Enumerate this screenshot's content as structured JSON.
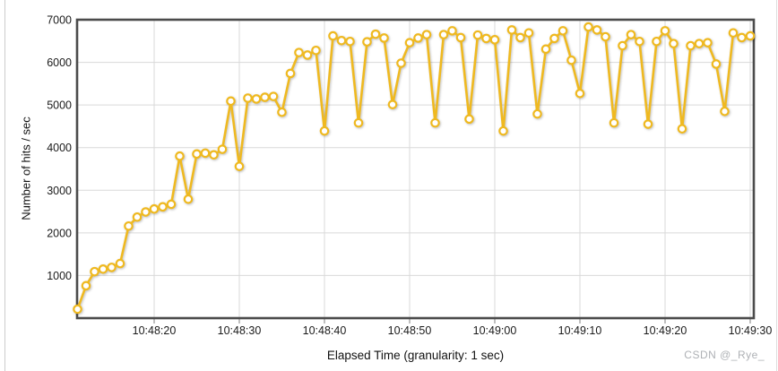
{
  "page": {
    "watermark": "CSDN @_Rye_"
  },
  "chart_data": {
    "type": "line",
    "title": "",
    "xlabel": "Elapsed Time (granularity: 1 sec)",
    "ylabel": "Number of hits / sec",
    "ylim": [
      0,
      7000
    ],
    "y_ticks": [
      1000,
      2000,
      3000,
      4000,
      5000,
      6000,
      7000
    ],
    "x_ticks": [
      "10:48:20",
      "10:48:30",
      "10:48:40",
      "10:48:50",
      "10:49:00",
      "10:49:10",
      "10:49:20",
      "10:49:30"
    ],
    "grid": true,
    "legend_position": "none",
    "colors": {
      "series": "#efb920",
      "grid": "#d9d9d9",
      "border": "#4b4b4b",
      "tick_text": "#1a1a1a"
    },
    "series": [
      {
        "name": "Number of hits / sec",
        "color": "#efb920",
        "marker": "open-circle",
        "start_time": "10:48:11",
        "interval_sec": 1,
        "values": [
          210,
          760,
          1090,
          1150,
          1190,
          1280,
          2160,
          2370,
          2490,
          2560,
          2610,
          2670,
          3800,
          2790,
          3850,
          3870,
          3830,
          3960,
          5090,
          3560,
          5160,
          5140,
          5180,
          5200,
          4830,
          5740,
          6230,
          6170,
          6280,
          4390,
          6620,
          6510,
          6490,
          4580,
          6480,
          6660,
          6570,
          5010,
          5980,
          6460,
          6570,
          6650,
          4580,
          6650,
          6740,
          6580,
          4670,
          6640,
          6560,
          6530,
          4390,
          6760,
          6580,
          6690,
          4790,
          6310,
          6560,
          6740,
          6050,
          5270,
          6830,
          6760,
          6600,
          4580,
          6390,
          6650,
          6490,
          4550,
          6490,
          6740,
          6440,
          4440,
          6390,
          6440,
          6460,
          5960,
          4850,
          6690,
          6580,
          6620
        ]
      }
    ]
  }
}
